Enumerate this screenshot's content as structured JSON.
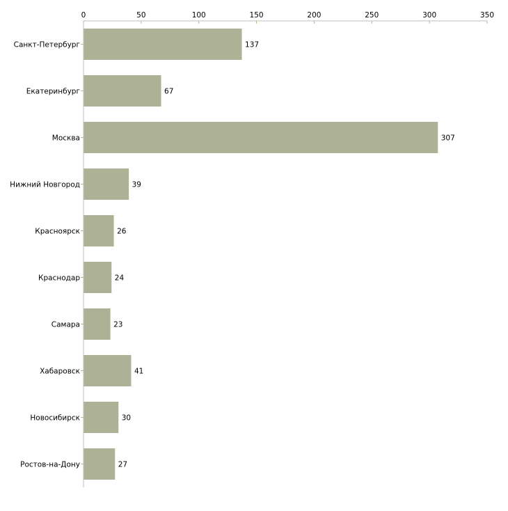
{
  "chart_data": {
    "type": "bar",
    "orientation": "horizontal",
    "categories": [
      "Санкт-Петербург",
      "Екатеринбург",
      "Москва",
      "Нижний Новгород",
      "Красноярск",
      "Краснодар",
      "Самара",
      "Хабаровск",
      "Новосибирск",
      "Ростов-на-Дону"
    ],
    "values": [
      137,
      67,
      307,
      39,
      26,
      24,
      23,
      41,
      30,
      27
    ],
    "xlim": [
      0,
      350
    ],
    "xticks": [
      0,
      50,
      100,
      150,
      200,
      250,
      300,
      350
    ],
    "title": "",
    "xlabel": "",
    "ylabel": "",
    "grid": false,
    "bar_color": "#adb296",
    "axis_color": "#bfbfbf",
    "tick_color": "#b5b98a"
  }
}
